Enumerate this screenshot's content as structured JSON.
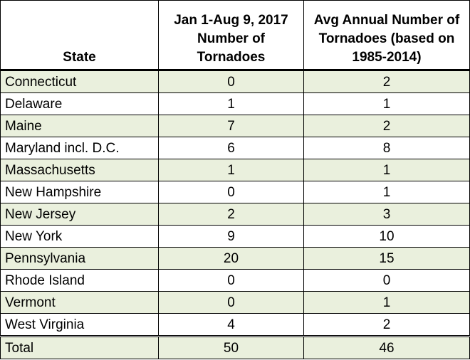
{
  "table": {
    "headers": {
      "state": "State",
      "count_2017": "Jan 1-Aug 9, 2017 Number of Tornadoes",
      "avg_annual": "Avg Annual Number of Tornadoes (based on 1985-2014)"
    },
    "rows": [
      {
        "state": "Connecticut",
        "count_2017": "0",
        "avg_annual": "2"
      },
      {
        "state": "Delaware",
        "count_2017": "1",
        "avg_annual": "1"
      },
      {
        "state": "Maine",
        "count_2017": "7",
        "avg_annual": "2"
      },
      {
        "state": "Maryland incl. D.C.",
        "count_2017": "6",
        "avg_annual": "8"
      },
      {
        "state": "Massachusetts",
        "count_2017": "1",
        "avg_annual": "1"
      },
      {
        "state": "New Hampshire",
        "count_2017": "0",
        "avg_annual": "1"
      },
      {
        "state": "New Jersey",
        "count_2017": "2",
        "avg_annual": "3"
      },
      {
        "state": "New York",
        "count_2017": "9",
        "avg_annual": "10"
      },
      {
        "state": "Pennsylvania",
        "count_2017": "20",
        "avg_annual": "15"
      },
      {
        "state": "Rhode Island",
        "count_2017": "0",
        "avg_annual": "0"
      },
      {
        "state": "Vermont",
        "count_2017": "0",
        "avg_annual": "1"
      },
      {
        "state": "West Virginia",
        "count_2017": "4",
        "avg_annual": "2"
      }
    ],
    "total": {
      "state": "Total",
      "count_2017": "50",
      "avg_annual": "46"
    },
    "colors": {
      "shaded_row": "#eaf0dd",
      "border": "#000000",
      "text": "#000000"
    }
  }
}
